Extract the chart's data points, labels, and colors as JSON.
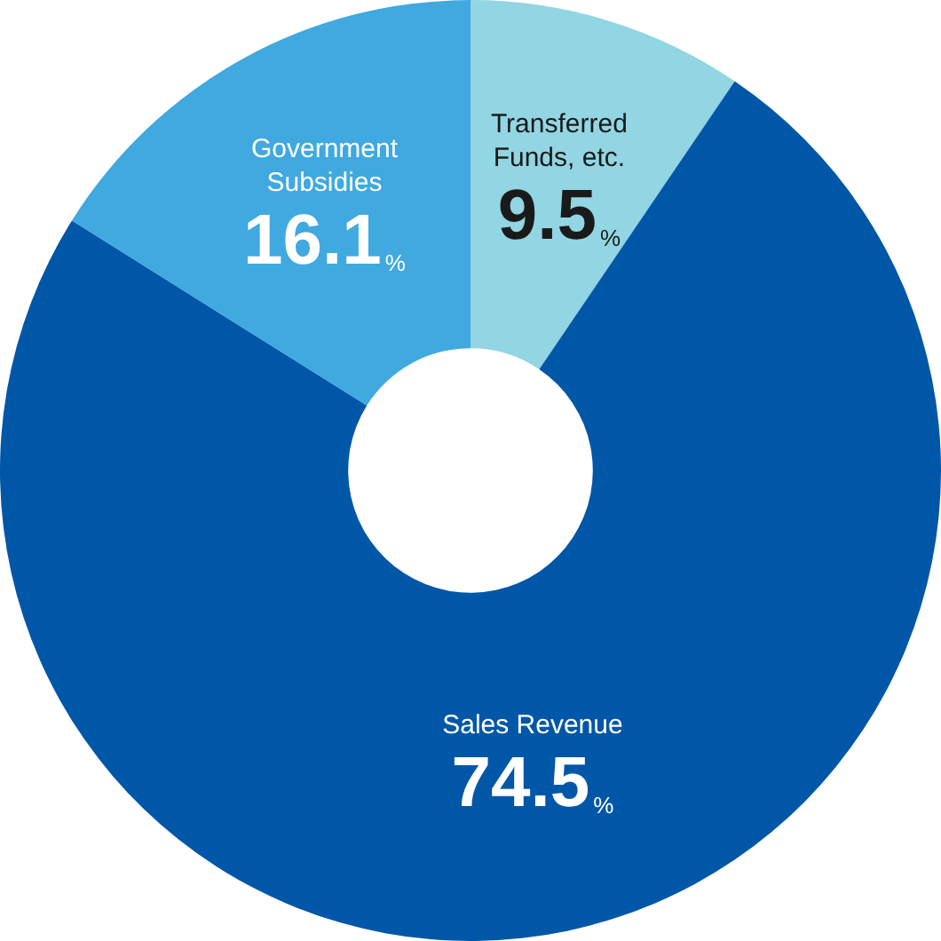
{
  "chart_data": {
    "type": "donut",
    "categories": [
      "Transferred Funds, etc.",
      "Sales Revenue",
      "Government Subsidies"
    ],
    "values": [
      9.5,
      74.5,
      16.1
    ],
    "colors": [
      "#92d5e3",
      "#0057a8",
      "#3fa9e0"
    ],
    "value_labels": [
      "9.5%",
      "74.5%",
      "16.1%"
    ],
    "legend": false
  }
}
